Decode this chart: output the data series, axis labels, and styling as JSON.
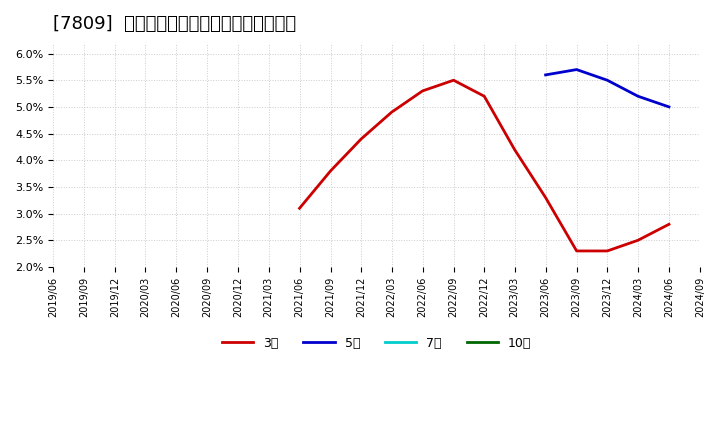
{
  "title": "[7809]  経常利益マージンの標準偏差の推移",
  "title_fontsize": 13,
  "background_color": "#ffffff",
  "plot_bg_color": "#ffffff",
  "grid_color": "#cccccc",
  "ylim": [
    0.02,
    0.062
  ],
  "yticks": [
    0.02,
    0.025,
    0.03,
    0.035,
    0.04,
    0.045,
    0.05,
    0.055,
    0.06
  ],
  "xstart": "2019-06-01",
  "xend": "2024-09-01",
  "series": {
    "3year": {
      "color": "#cc0000",
      "label": "3年",
      "linewidth": 2.0,
      "points": [
        [
          "2021-06-01",
          0.031
        ],
        [
          "2021-09-01",
          0.038
        ],
        [
          "2021-12-01",
          0.044
        ],
        [
          "2022-03-01",
          0.049
        ],
        [
          "2022-06-01",
          0.053
        ],
        [
          "2022-09-01",
          0.055
        ],
        [
          "2022-12-01",
          0.052
        ],
        [
          "2023-03-01",
          0.042
        ],
        [
          "2023-06-01",
          0.033
        ],
        [
          "2023-09-01",
          0.023
        ],
        [
          "2023-12-01",
          0.023
        ],
        [
          "2024-03-01",
          0.025
        ],
        [
          "2024-06-01",
          0.028
        ]
      ]
    },
    "5year": {
      "color": "#0000cc",
      "label": "5年",
      "linewidth": 2.0,
      "points": [
        [
          "2023-06-01",
          0.056
        ],
        [
          "2023-09-01",
          0.057
        ],
        [
          "2023-12-01",
          0.055
        ],
        [
          "2024-03-01",
          0.052
        ],
        [
          "2024-06-01",
          0.05
        ]
      ]
    },
    "7year": {
      "color": "#00cccc",
      "label": "7年",
      "linewidth": 2.0,
      "points": []
    },
    "10year": {
      "color": "#006600",
      "label": "10年",
      "linewidth": 2.0,
      "points": []
    }
  },
  "legend_labels": [
    "3年",
    "5年",
    "7年",
    "10年"
  ],
  "legend_colors": [
    "#cc0000",
    "#0000cc",
    "#00cccc",
    "#006600"
  ]
}
